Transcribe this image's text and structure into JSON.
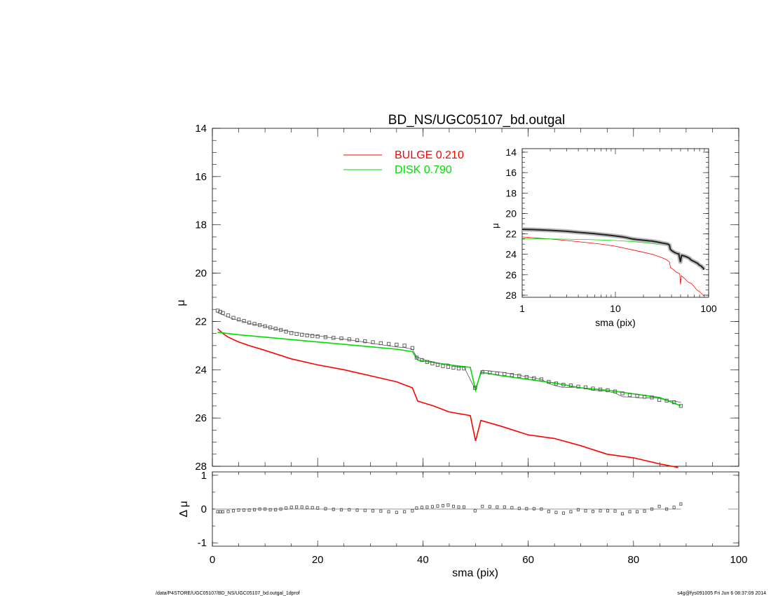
{
  "chart_data": [
    {
      "type": "line",
      "panel": "main",
      "title": "BD_NS/UGC05107_bd.outgal",
      "xlabel": "",
      "ylabel": "μ",
      "xlim": [
        0,
        100
      ],
      "ylim": [
        28,
        14
      ],
      "y_inverted": true,
      "x_ticks": [
        0,
        20,
        40,
        60,
        80,
        100
      ],
      "y_ticks": [
        14,
        16,
        18,
        20,
        22,
        24,
        26,
        28
      ],
      "grid": false,
      "legend": {
        "placement": "top-center",
        "entries": [
          {
            "label": "BULGE  0.210",
            "color": "#ff0000"
          },
          {
            "label": "DISK  0.790",
            "color": "#00dd00"
          }
        ]
      },
      "observed": {
        "marker": "square",
        "color": "#555555",
        "x": [
          1,
          1.5,
          2,
          3,
          4,
          5,
          6,
          7,
          8,
          9,
          10,
          11,
          12,
          13,
          14,
          15,
          16,
          17,
          18,
          19,
          20,
          21.5,
          23,
          24.5,
          26,
          27.5,
          29,
          30.5,
          32,
          33.5,
          35,
          36.5,
          38,
          38.8,
          39.8,
          40.8,
          41.8,
          42.8,
          43.8,
          44.8,
          45.8,
          46.8,
          47.8,
          49.9,
          51.3,
          52.7,
          54.1,
          55.5,
          56.9,
          58.3,
          59.7,
          61.1,
          62.5,
          63.9,
          65.3,
          66.7,
          68.1,
          69.5,
          70.9,
          72.3,
          73.7,
          75.1,
          76.5,
          77.9,
          79.3,
          80.7,
          82.1,
          83.5,
          84.9,
          86.3,
          87.7,
          89
        ],
        "y": [
          21.55,
          21.6,
          21.65,
          21.75,
          21.85,
          21.92,
          21.98,
          22.05,
          22.1,
          22.15,
          22.2,
          22.25,
          22.3,
          22.35,
          22.42,
          22.48,
          22.52,
          22.55,
          22.58,
          22.6,
          22.62,
          22.65,
          22.68,
          22.7,
          22.74,
          22.78,
          22.82,
          22.86,
          22.9,
          22.93,
          22.96,
          23.0,
          23.1,
          23.5,
          23.6,
          23.68,
          23.74,
          23.8,
          23.85,
          23.88,
          23.92,
          23.95,
          23.95,
          24.75,
          24.1,
          24.12,
          24.15,
          24.18,
          24.22,
          24.25,
          24.3,
          24.35,
          24.4,
          24.5,
          24.57,
          24.62,
          24.65,
          24.7,
          24.73,
          24.78,
          24.82,
          24.85,
          24.9,
          24.98,
          25.05,
          25.08,
          25.12,
          25.15,
          25.25,
          25.28,
          25.35,
          25.5
        ]
      },
      "series": [
        {
          "name": "BULGE",
          "color": "#ff0000",
          "x": [
            1,
            2,
            3,
            5,
            7,
            10,
            15,
            20,
            25,
            30,
            35,
            38,
            39,
            42,
            45,
            49,
            50,
            51,
            55,
            60,
            65,
            70,
            75,
            80,
            85,
            88.5
          ],
          "y": [
            22.3,
            22.5,
            22.65,
            22.85,
            23.0,
            23.2,
            23.55,
            23.8,
            24.0,
            24.25,
            24.5,
            24.75,
            25.3,
            25.5,
            25.75,
            25.9,
            26.95,
            26.1,
            26.35,
            26.7,
            26.85,
            27.15,
            27.5,
            27.65,
            27.9,
            28.05
          ]
        },
        {
          "name": "DISK",
          "color": "#00dd00",
          "x": [
            1,
            5,
            10,
            15,
            20,
            25,
            30,
            35,
            38,
            39,
            42,
            45,
            49,
            50,
            51,
            55,
            60,
            65,
            70,
            75,
            80,
            85,
            89
          ],
          "y": [
            22.45,
            22.55,
            22.65,
            22.75,
            22.85,
            22.95,
            23.05,
            23.15,
            23.25,
            23.6,
            23.7,
            23.8,
            23.9,
            24.85,
            24.1,
            24.25,
            24.4,
            24.55,
            24.75,
            24.85,
            25.0,
            25.15,
            25.5
          ]
        }
      ]
    },
    {
      "type": "scatter",
      "panel": "residual",
      "xlabel": "sma (pix)",
      "ylabel": "Δ μ",
      "xlim": [
        0,
        100
      ],
      "ylim": [
        -1.1,
        1.1
      ],
      "x_ticks": [
        0,
        20,
        40,
        60,
        80,
        100
      ],
      "y_ticks": [
        -1,
        0,
        1
      ],
      "zero_line": true,
      "residuals": [
        -0.08,
        -0.08,
        -0.08,
        -0.07,
        -0.05,
        -0.03,
        -0.03,
        -0.03,
        -0.02,
        0.0,
        0.0,
        -0.02,
        -0.02,
        0.0,
        0.03,
        0.05,
        0.06,
        0.06,
        0.05,
        0.04,
        0.03,
        0.01,
        -0.01,
        -0.02,
        -0.02,
        -0.03,
        -0.04,
        -0.05,
        -0.06,
        -0.08,
        -0.1,
        -0.08,
        -0.05,
        0.03,
        0.05,
        0.06,
        0.07,
        0.09,
        0.1,
        0.12,
        0.08,
        0.06,
        0.06,
        -0.05,
        0.08,
        0.07,
        0.06,
        0.06,
        0.04,
        0.02,
        0.01,
        0.01,
        0.0,
        -0.07,
        -0.1,
        -0.12,
        -0.08,
        -0.02,
        -0.05,
        -0.07,
        -0.05,
        -0.05,
        -0.06,
        -0.14,
        -0.08,
        -0.08,
        -0.06,
        0.0,
        0.08,
        0.0,
        0.05,
        0.15
      ]
    },
    {
      "type": "line",
      "panel": "inset",
      "xlabel": "sma (pix)",
      "ylabel": "μ",
      "xscale": "log",
      "xlim": [
        1,
        100
      ],
      "ylim": [
        28,
        14
      ],
      "x_ticks": [
        1,
        10,
        100
      ],
      "y_ticks": [
        14,
        16,
        18,
        20,
        22,
        24,
        26,
        28
      ]
    }
  ],
  "footer": {
    "left": "/data/P4STORE/UGC05107/BD_NS/UGC05107_bd.outgal_1dprof",
    "right": "s4g@fys091005  Fri Jun  6 08:37:09 2014"
  }
}
